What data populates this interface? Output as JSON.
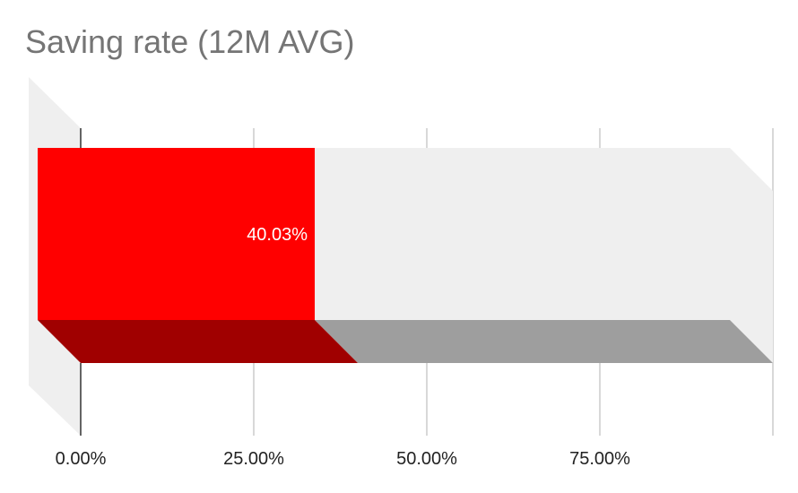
{
  "chart_data": {
    "type": "bar",
    "orientation": "horizontal",
    "style": "3d",
    "title": "Saving rate (12M AVG)",
    "categories": [
      ""
    ],
    "values": [
      40.03
    ],
    "data_labels": [
      "40.03%"
    ],
    "xlim": [
      0,
      100
    ],
    "x_ticks": [
      "0.00%",
      "25.00%",
      "50.00%",
      "75.00%"
    ],
    "x_tick_values": [
      0,
      25,
      50,
      75
    ],
    "grid": true,
    "legend": "none",
    "colors": {
      "bar_front": "#ff0000",
      "bar_bottom": "#a00000",
      "track_front": "#efefef",
      "track_bottom": "#9e9e9e",
      "side_wall": "#efefef",
      "grid": "#cccccc",
      "axis": "#333333",
      "title": "#757575",
      "tick_label": "#222222",
      "data_label": "#ffffff"
    }
  }
}
